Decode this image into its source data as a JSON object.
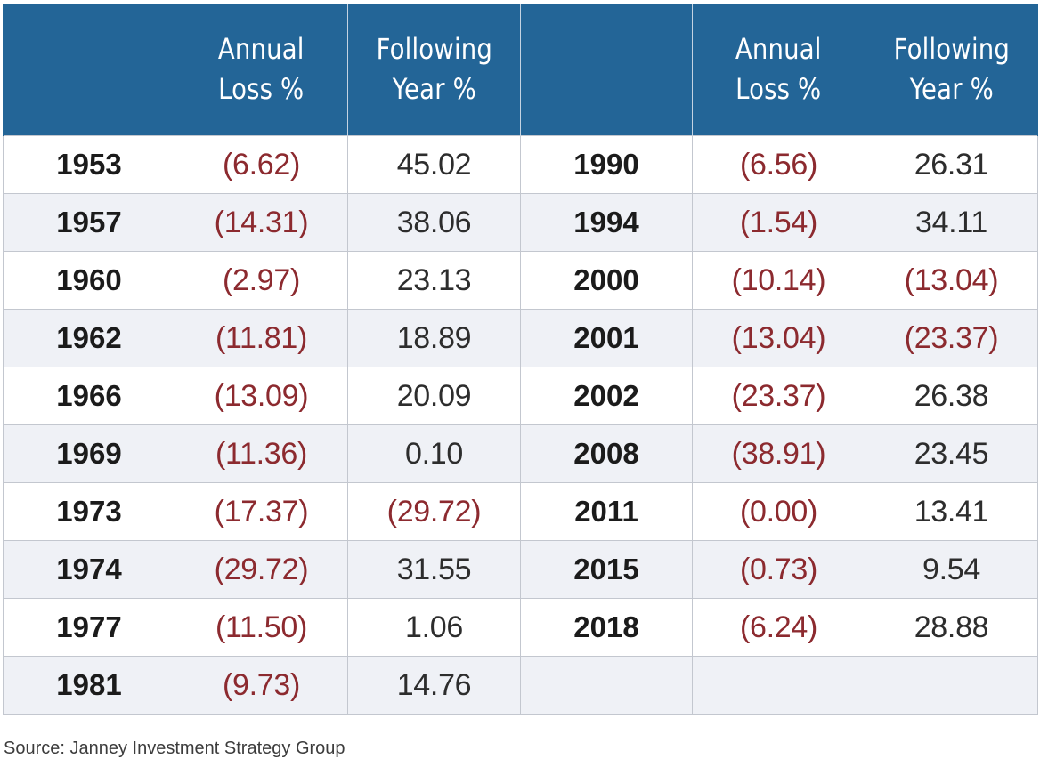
{
  "header": {
    "col_year_left": "",
    "col_annual_loss_left": [
      "Annual",
      "Loss %"
    ],
    "col_following_left": [
      "Following",
      "Year %"
    ],
    "col_year_right": "",
    "col_annual_loss_right": [
      "Annual",
      "Loss %"
    ],
    "col_following_right": [
      "Following",
      "Year %"
    ]
  },
  "rows": [
    {
      "left_year": "1953",
      "left_loss": "(6.62)",
      "left_follow": "45.02",
      "right_year": "1990",
      "right_loss": "(6.56)",
      "right_follow": "26.31"
    },
    {
      "left_year": "1957",
      "left_loss": "(14.31)",
      "left_follow": "38.06",
      "right_year": "1994",
      "right_loss": "(1.54)",
      "right_follow": "34.11"
    },
    {
      "left_year": "1960",
      "left_loss": "(2.97)",
      "left_follow": "23.13",
      "right_year": "2000",
      "right_loss": "(10.14)",
      "right_follow": "(13.04)"
    },
    {
      "left_year": "1962",
      "left_loss": "(11.81)",
      "left_follow": "18.89",
      "right_year": "2001",
      "right_loss": "(13.04)",
      "right_follow": "(23.37)"
    },
    {
      "left_year": "1966",
      "left_loss": "(13.09)",
      "left_follow": "20.09",
      "right_year": "2002",
      "right_loss": "(23.37)",
      "right_follow": "26.38"
    },
    {
      "left_year": "1969",
      "left_loss": "(11.36)",
      "left_follow": "0.10",
      "right_year": "2008",
      "right_loss": "(38.91)",
      "right_follow": "23.45"
    },
    {
      "left_year": "1973",
      "left_loss": "(17.37)",
      "left_follow": "(29.72)",
      "right_year": "2011",
      "right_loss": "(0.00)",
      "right_follow": "13.41"
    },
    {
      "left_year": "1974",
      "left_loss": "(29.72)",
      "left_follow": "31.55",
      "right_year": "2015",
      "right_loss": "(0.73)",
      "right_follow": "9.54"
    },
    {
      "left_year": "1977",
      "left_loss": "(11.50)",
      "left_follow": "1.06",
      "right_year": "2018",
      "right_loss": "(6.24)",
      "right_follow": "28.88"
    },
    {
      "left_year": "1981",
      "left_loss": "(9.73)",
      "left_follow": "14.76",
      "right_year": "",
      "right_loss": "",
      "right_follow": ""
    }
  ],
  "source": "Source: Janney Investment Strategy Group",
  "colors": {
    "header_bg": "#236597",
    "header_text": "#ffffff",
    "negative_text": "#8c2a2f",
    "stripe_bg": "#eff1f6"
  }
}
